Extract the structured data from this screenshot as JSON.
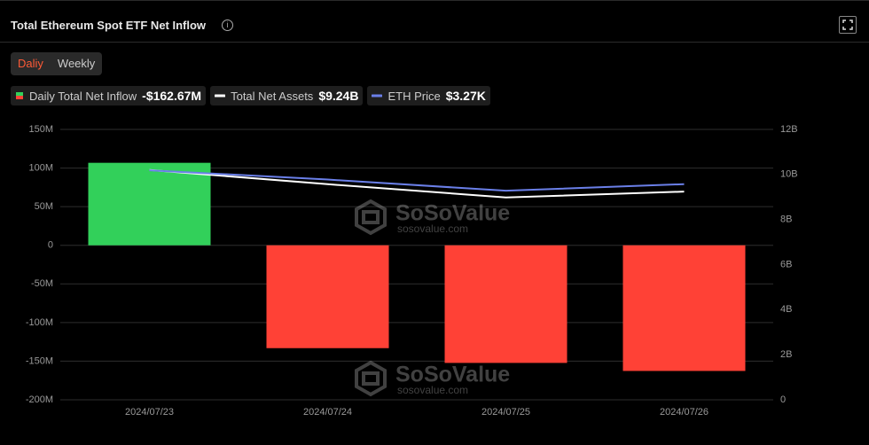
{
  "header": {
    "title": "Total Ethereum Spot ETF Net Inflow",
    "tabs": [
      "Daliy",
      "Weekly"
    ]
  },
  "chart_data": {
    "type": "bar",
    "categories": [
      "2024/07/23",
      "2024/07/24",
      "2024/07/25",
      "2024/07/26"
    ],
    "series": [
      {
        "name": "Daily Total Net Inflow",
        "legend_value": "-$162.67M",
        "type": "bar",
        "positive_color": "#32d05a",
        "negative_color": "#ff4136",
        "values": [
          106.78,
          -133.16,
          -152.26,
          -162.67
        ]
      },
      {
        "name": "Total Net Assets",
        "legend_value": "$9.24B",
        "type": "line",
        "color": "#ffffff",
        "axis": "y2",
        "values": [
          10.2,
          9.57,
          8.98,
          9.24
        ]
      },
      {
        "name": "ETH Price",
        "legend_value": "$3.27K",
        "type": "line",
        "color": "#6a7fe8",
        "axis": "y3",
        "values": [
          3480,
          3340,
          3170,
          3270
        ]
      }
    ],
    "ylim": [
      -200,
      150
    ],
    "yticks": [
      {
        "value": -200,
        "label": "-200M"
      },
      {
        "value": -150,
        "label": "-150M"
      },
      {
        "value": -100,
        "label": "-100M"
      },
      {
        "value": -50,
        "label": "-50M"
      },
      0,
      {
        "value": 50,
        "label": "50M"
      },
      {
        "value": 100,
        "label": "100M"
      },
      {
        "value": 150,
        "label": "150M"
      }
    ],
    "y2lim": [
      0,
      12
    ],
    "y2ticks": [
      0,
      {
        "value": 2,
        "label": "2B"
      },
      {
        "value": 4,
        "label": "4B"
      },
      {
        "value": 6,
        "label": "6B"
      },
      {
        "value": 8,
        "label": "8B"
      },
      {
        "value": 10,
        "label": "10B"
      },
      {
        "value": 12,
        "label": "12B"
      }
    ],
    "y3lim": [
      0,
      4100
    ],
    "grid": true,
    "watermark": {
      "brand": "SoSoValue",
      "url": "sosovalue.com"
    }
  }
}
